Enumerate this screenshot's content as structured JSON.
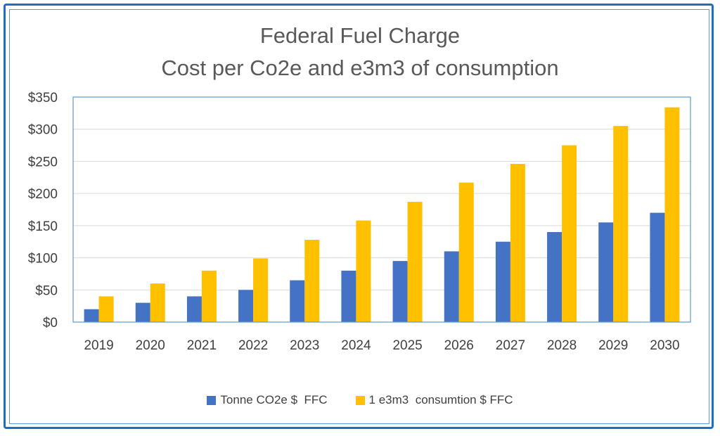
{
  "chart_data": {
    "type": "bar",
    "title": "Federal Fuel Charge",
    "subtitle": "Cost per Co2e and e3m3 of consumption",
    "categories": [
      "2019",
      "2020",
      "2021",
      "2022",
      "2023",
      "2024",
      "2025",
      "2026",
      "2027",
      "2028",
      "2029",
      "2030"
    ],
    "series": [
      {
        "name": "Tonne CO2e $  FFC",
        "color": "#4472c4",
        "values": [
          20,
          30,
          40,
          50,
          65,
          80,
          95,
          110,
          125,
          140,
          155,
          170
        ]
      },
      {
        "name": "1 e3m3  consumtion $ FFC",
        "color": "#ffc000",
        "values": [
          40,
          60,
          80,
          99,
          128,
          158,
          187,
          217,
          246,
          275,
          305,
          334
        ]
      }
    ],
    "ylim": [
      0,
      350
    ],
    "yticks": [
      0,
      50,
      100,
      150,
      200,
      250,
      300,
      350
    ],
    "ytick_labels": [
      "$0",
      "$50",
      "$100",
      "$150",
      "$200",
      "$250",
      "$300",
      "$350"
    ],
    "grid": true,
    "legend_position": "bottom",
    "xlabel": "",
    "ylabel": ""
  }
}
